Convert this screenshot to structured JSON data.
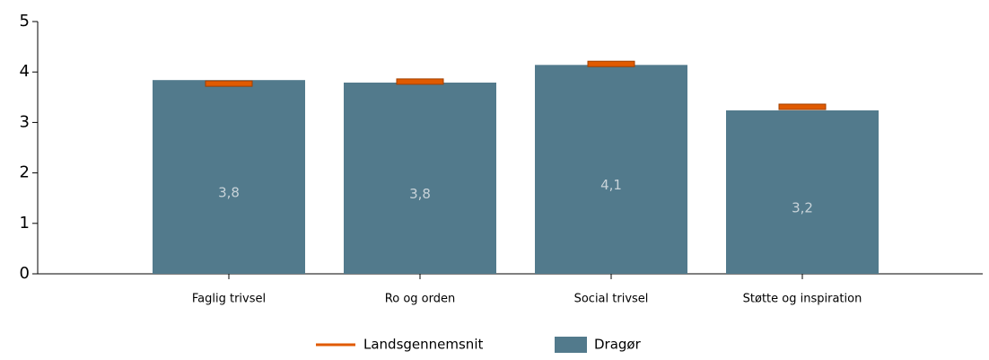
{
  "chart_data": {
    "type": "bar",
    "categories": [
      "Faglig trivsel",
      "Ro og orden",
      "Social trivsel",
      "Støtte og inspiration"
    ],
    "series": [
      {
        "name": "Landsgennemsnit",
        "color": "#e05a00",
        "values": [
          3.77,
          3.81,
          4.16,
          3.31
        ]
      },
      {
        "name": "Dragør",
        "color": "#527a8c",
        "values": [
          3.84,
          3.79,
          4.14,
          3.24
        ],
        "value_labels": [
          "3,8",
          "3,8",
          "4,1",
          "3,2"
        ]
      }
    ],
    "ylim": [
      0,
      5
    ],
    "yticks": [
      0,
      1,
      2,
      3,
      4,
      5
    ]
  }
}
